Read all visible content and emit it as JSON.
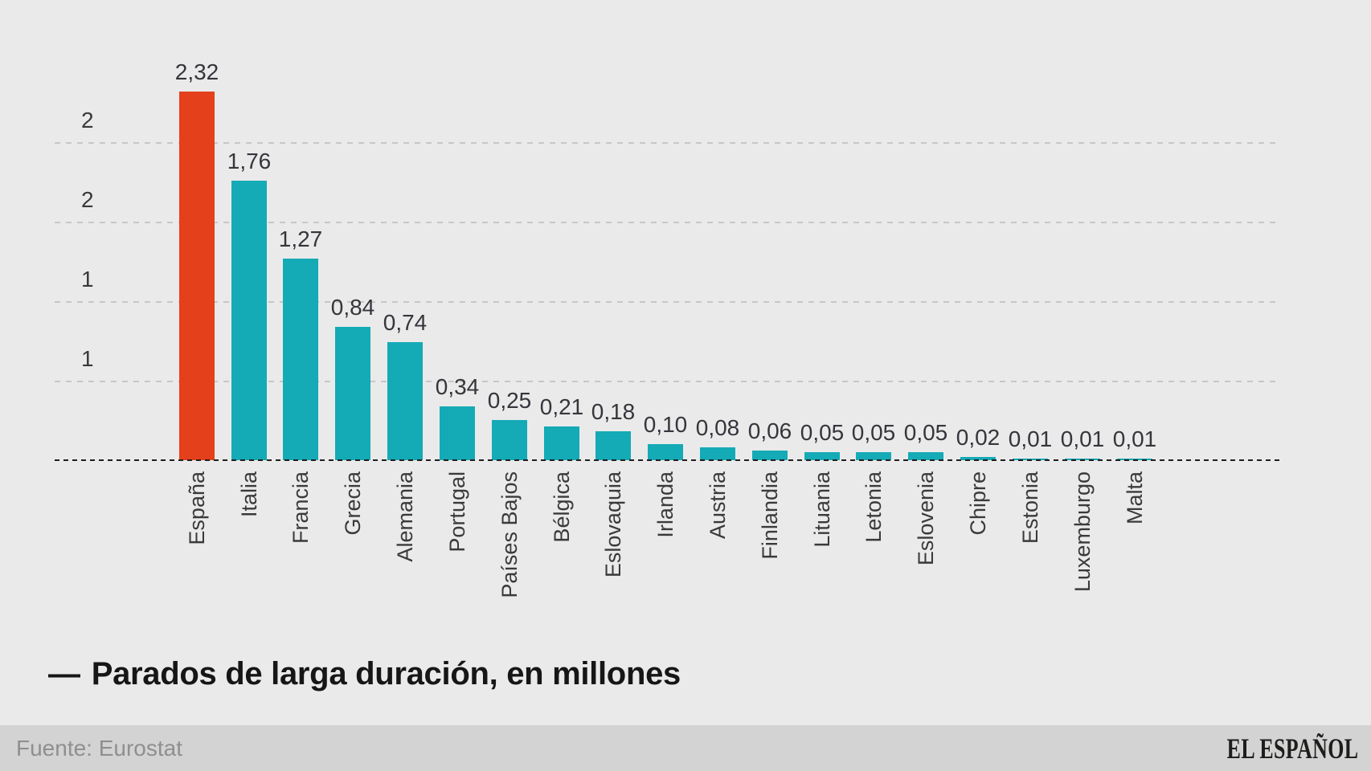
{
  "legend": {
    "marker": "—",
    "label": "Parados de larga duración, en millones"
  },
  "footer": {
    "source": "Fuente: Eurostat",
    "brand": "EL ESPAÑOL"
  },
  "colors": {
    "background": "#eaeaea",
    "footer_background": "#d3d3d3",
    "bar": "#14aab6",
    "bar_highlight": "#e4401b",
    "gridline": "#c7c7c7",
    "baseline": "#1f1f1f",
    "label_text": "#3a3a3a",
    "source_text": "#8f8f8f"
  },
  "chart_data": {
    "type": "bar",
    "title": "",
    "legend": "Parados de larga duración, en millones",
    "categories": [
      "España",
      "Italia",
      "Francia",
      "Grecia",
      "Alemania",
      "Portugal",
      "Países Bajos",
      "Bélgica",
      "Eslovaquia",
      "Irlanda",
      "Austria",
      "Finlandia",
      "Lituania",
      "Letonia",
      "Eslovenia",
      "Chipre",
      "Estonia",
      "Luxemburgo",
      "Malta"
    ],
    "values": [
      2.32,
      1.76,
      1.27,
      0.84,
      0.74,
      0.34,
      0.25,
      0.21,
      0.18,
      0.1,
      0.08,
      0.06,
      0.05,
      0.05,
      0.05,
      0.02,
      0.01,
      0.01,
      0.01
    ],
    "value_labels": [
      "2,32",
      "1,76",
      "1,27",
      "0,84",
      "0,74",
      "0,34",
      "0,25",
      "0,21",
      "0,18",
      "0,10",
      "0,08",
      "0,06",
      "0,05",
      "0,05",
      "0,05",
      "0,02",
      "0,01",
      "0,01",
      "0,01"
    ],
    "highlight_category": "España",
    "y_ticks": [
      {
        "value": 2.0,
        "label": "2"
      },
      {
        "value": 1.5,
        "label": "2"
      },
      {
        "value": 1.0,
        "label": "1"
      },
      {
        "value": 0.5,
        "label": "1"
      }
    ],
    "ylim": [
      0,
      2.55
    ],
    "grid": "horizontal-dashed",
    "legend_position": "bottom-left",
    "source": "Fuente: Eurostat",
    "publisher": "EL ESPAÑOL"
  }
}
